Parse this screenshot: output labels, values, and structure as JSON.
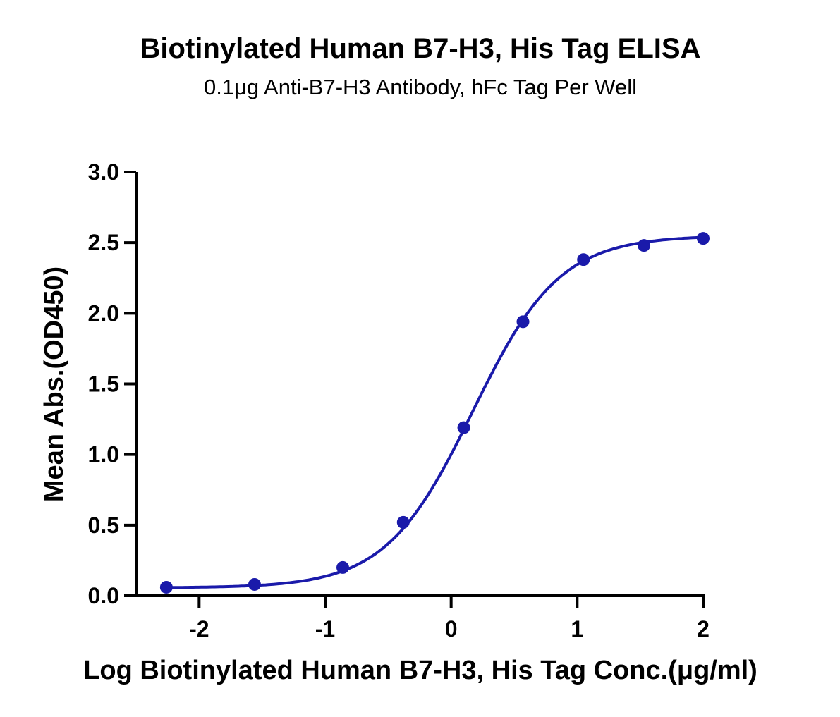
{
  "chart_data": {
    "type": "scatter",
    "title": "Biotinylated Human B7-H3, His Tag ELISA",
    "subtitle": "0.1μg Anti-B7-H3 Antibody, hFc Tag Per Well",
    "xlabel": "Log Biotinylated Human B7-H3, His Tag Conc.(μg/ml)",
    "ylabel": "Mean Abs.(OD450)",
    "xlim": [
      -2.5,
      2
    ],
    "ylim": [
      0,
      3.0
    ],
    "x_ticks": [
      -2,
      -1,
      0,
      1,
      2
    ],
    "x_tick_labels": [
      "-2",
      "-1",
      "0",
      "1",
      "2"
    ],
    "y_ticks": [
      0,
      0.5,
      1.0,
      1.5,
      2.0,
      2.5,
      3.0
    ],
    "y_tick_labels": [
      "0.0",
      "0.5",
      "1.0",
      "1.5",
      "2.0",
      "2.5",
      "3.0"
    ],
    "grid": false,
    "series": [
      {
        "color": "#1a1aaa",
        "points": [
          {
            "x": -2.26,
            "y": 0.06
          },
          {
            "x": -1.56,
            "y": 0.08
          },
          {
            "x": -0.86,
            "y": 0.2
          },
          {
            "x": -0.38,
            "y": 0.52
          },
          {
            "x": 0.1,
            "y": 1.19
          },
          {
            "x": 0.57,
            "y": 1.94
          },
          {
            "x": 1.05,
            "y": 2.38
          },
          {
            "x": 1.53,
            "y": 2.48
          },
          {
            "x": 2.0,
            "y": 2.53
          }
        ],
        "fit": {
          "model": "4PL",
          "bottom": 0.056,
          "top": 2.55,
          "logEC50": 0.17,
          "hill": 1.26,
          "x_range": [
            -2.26,
            2.0
          ]
        }
      }
    ]
  }
}
